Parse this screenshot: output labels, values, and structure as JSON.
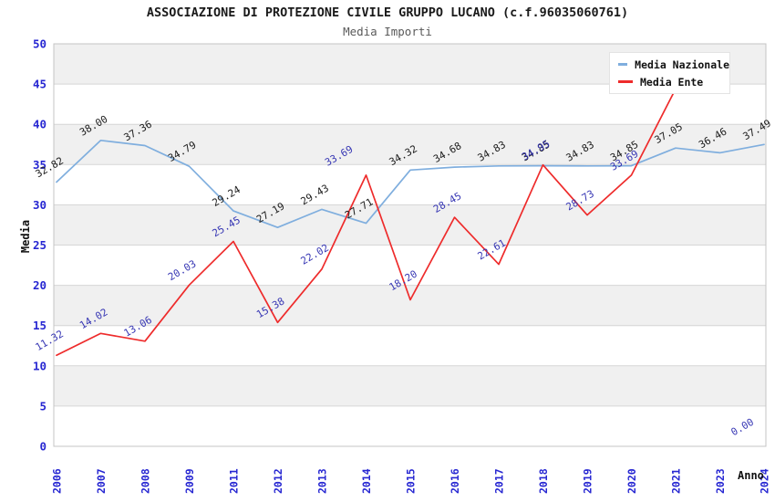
{
  "chart_data": {
    "type": "line",
    "title": "ASSOCIAZIONE DI PROTEZIONE CIVILE GRUPPO LUCANO (c.f.96035060761)",
    "subtitle": "Media Importi",
    "xlabel": "Anno",
    "ylabel": "Media",
    "ylim": [
      0,
      50
    ],
    "y_ticks": [
      0,
      5,
      10,
      15,
      20,
      25,
      30,
      35,
      40,
      45,
      50
    ],
    "grid": true,
    "legend_position": "top-right",
    "categories": [
      "2006",
      "2007",
      "2008",
      "2009",
      "2011",
      "2012",
      "2013",
      "2014",
      "2015",
      "2016",
      "2017",
      "2018",
      "2019",
      "2020",
      "2021",
      "2023",
      "2024"
    ],
    "series": [
      {
        "name": "Media Nazionale",
        "color": "#7FAEDE",
        "label_color": "#1c1c1c",
        "values": [
          32.82,
          38.0,
          37.36,
          34.79,
          29.24,
          27.19,
          29.43,
          27.71,
          34.32,
          34.68,
          34.83,
          34.85,
          34.83,
          34.85,
          37.05,
          36.46,
          37.49
        ],
        "labels": [
          "32.82",
          "38.00",
          "37.36",
          "34.79",
          "29.24",
          "27.19",
          "29.43",
          "27.71",
          "34.32",
          "34.68",
          "34.83",
          "34.85",
          "34.83",
          "34.85",
          "37.05",
          "36.46",
          "37.49"
        ]
      },
      {
        "name": "Media Ente",
        "color": "#EE2B2B",
        "label_color": "#3737B4",
        "values": [
          11.32,
          14.02,
          13.06,
          20.03,
          25.45,
          15.38,
          22.02,
          33.69,
          18.2,
          28.45,
          22.61,
          34.95,
          28.73,
          33.69,
          44.4,
          null,
          0.0
        ],
        "labels": [
          "11.32",
          "14.02",
          "13.06",
          "20.03",
          "25.45",
          "15.38",
          "22.02",
          "33.69",
          "18.20",
          "28.45",
          "22.61",
          "34.95",
          "28.73",
          "33.69",
          "",
          null,
          "0.00"
        ]
      }
    ],
    "style": {
      "band_color": "#f0f0f0",
      "grid_color": "#d6d6d6",
      "frame_color": "#c4c4c4",
      "tick_color": "#2727d2",
      "background": "#ffffff"
    }
  }
}
